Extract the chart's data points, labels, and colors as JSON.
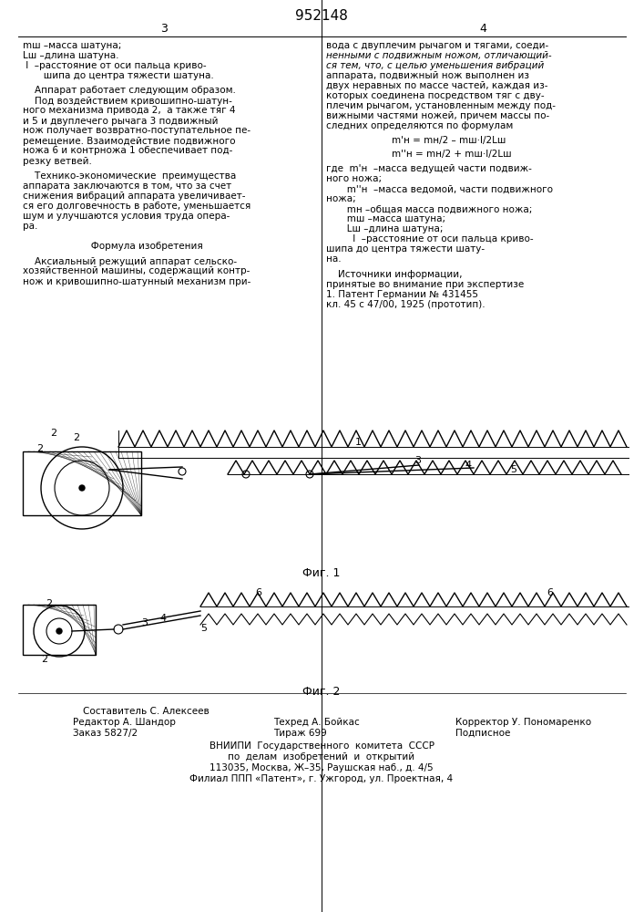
{
  "patent_number": "952148",
  "col3_header": "3",
  "col4_header": "4",
  "col3_text_lines": [
    "mш –масса шатуна;",
    "Lш –длина шатуна.",
    "  l  –расстояние от оси пальца криво-",
    "       шипа до центра тяжести шатуна."
  ],
  "col3_para": "    Аппарат работает следующим образом.",
  "col3_para2": "    Под воздействием кривошипно-шатун-",
  "col3_para3": "ного механизма привода 2,  а также тяг 4",
  "col3_para4": "и 5 и двуплечего рычага 3 подвижный",
  "col3_para5": "нож получает возвратно-поступательное пере-",
  "col3_para6": "мещение. Взаимодействие подвижного",
  "col3_para7": "ножа 6 и контрножа 1 обеспечивает под-",
  "col3_para8": "резку ветвей.",
  "col3_tech": "    Технико-экономические  преимущества",
  "col3_tech2": "аппарата заключаются в том, что за счет",
  "col3_tech3": "снижения вибраций аппарата увеличивает-",
  "col3_tech4": "ся его долговечность в работе, уменьшается",
  "col3_tech5": "шум и улучшаются условия труда операто-",
  "col3_tech6": "ра.",
  "col3_formula_header": "                       Формула изобретения",
  "col3_formula": "    Аксиальный режущий аппарат сельско-",
  "col3_formula2": "хозяйственной машины, содержащий контр-",
  "col3_formula3": "нож и кривошипно-шатунный механизм при-",
  "col4_text": "вода с двуплечим рычагом и тягами, соеди-",
  "col4_text2": "ненными с подвижным ножом, отличающий-",
  "col4_text3": "ся тем, что, с целью уменьшения вибраций",
  "col4_text4": "аппарата, подвижный нож выполнен из",
  "col4_text5": "двух неравных по массе частей, каждая из-",
  "col4_text6": "которых соединена посредством тяг с дву-",
  "col4_text7": "плечным рычагом, установленным между под-",
  "col4_text8": "вижными частями ножей, причем массы пос-",
  "col4_text9": "ледних определяются по формулам",
  "formula_line1": "m'н = mн/2 – mш·l/2Lш",
  "formula_line2": "m''н = mн/2 + mш·l/2Lш",
  "formula_where": "где  m'н  –масса ведущей части подвиж-",
  "formula_where2": "ного ножа;",
  "formula_where3": "       m''н  –масса ведомой, части подвижного",
  "formula_where4": "ножа;",
  "formula_where5": "       mн –общая масса подвижного ножа;",
  "formula_where6": "       mш –масса шатуна;",
  "formula_where7": "       Lш –длина шатуна;",
  "formula_where8": "         l  –расстояние от оси пальца криво-",
  "formula_where9": "шипа до центра тяжести шату-",
  "formula_where10": "на.",
  "sources_header": "Источники информации,",
  "sources_sub": "принятые во внимание при экспертизе",
  "source1": "1. Патент Германии № 431455",
  "source2": "кл. 45 с 47/00, 1925 (прототип).",
  "fig1_label": "Фиг. 1",
  "fig2_label": "Фиг. 2",
  "bottom_editor": "Редактор А. Шандор",
  "bottom_order": "Заказ 5827/2",
  "bottom_compiler": "Составитель С. Алексеев",
  "bottom_techred": "Техред А. Бойкас",
  "bottom_tirazh": "Тираж 699",
  "bottom_corrector": "Корректор У. Пономаренко",
  "bottom_podpisnoe": "Подписное",
  "bottom_vniip1": "ВНИИПИ  Государственного  комитета  СССР",
  "bottom_vniip2": "по  делам  изобретений  и  открытий",
  "bottom_addr1": "113035, Москва, Ж–35, Раушская наб., д. 4/5",
  "bottom_addr2": "Филиал ППП «Патент», г. Ужгород, ул. Проектная, 4",
  "bg_color": "#ffffff",
  "text_color": "#000000",
  "line_color": "#000000",
  "font_size_body": 7.5,
  "font_size_header": 9,
  "font_size_patent": 11
}
